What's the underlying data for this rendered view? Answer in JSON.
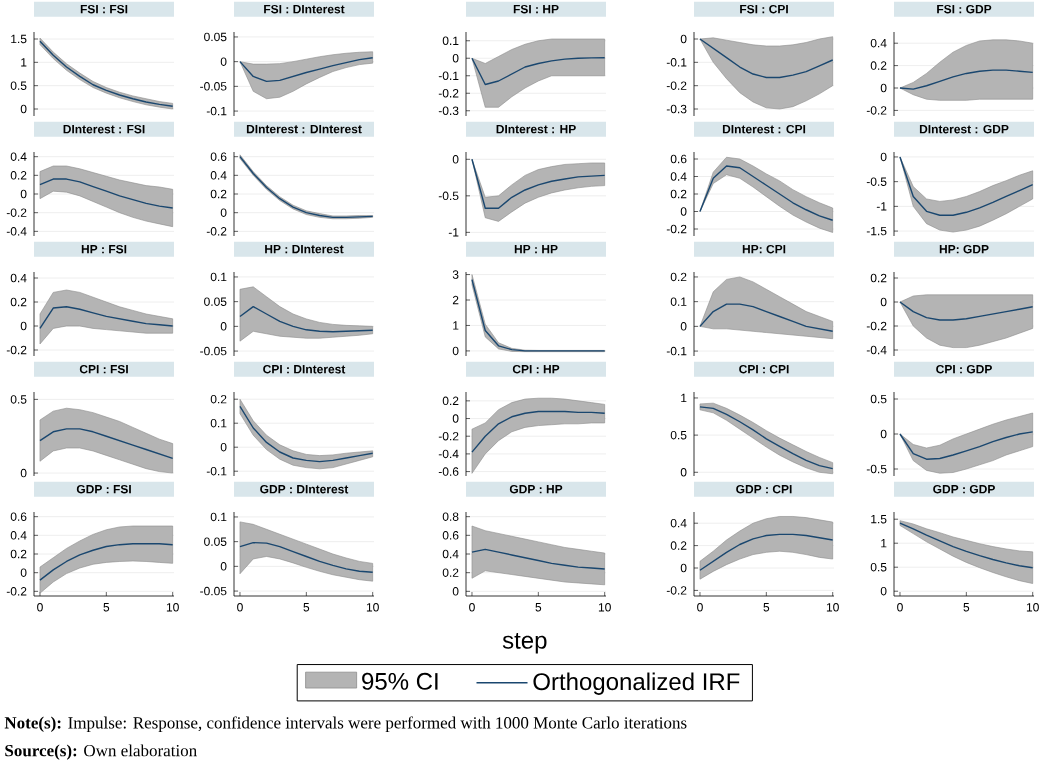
{
  "chart_data": [
    {
      "type": "line",
      "title": "FSI : FSI",
      "x": [
        0,
        1,
        2,
        3,
        4,
        5,
        6,
        7,
        8,
        9,
        10
      ],
      "xlim": [
        -0.45,
        10.1
      ],
      "xticks": [
        0,
        5,
        10
      ],
      "ylim": [
        -0.15,
        1.65
      ],
      "yticks": [
        0,
        0.5,
        1,
        1.5
      ],
      "grid": "y",
      "tick_labels": "y",
      "series": [
        {
          "color": "#1a476f",
          "values": [
            1.45,
            1.15,
            0.9,
            0.7,
            0.52,
            0.4,
            0.3,
            0.22,
            0.15,
            0.1,
            0.06
          ],
          "lower": [
            1.38,
            1.08,
            0.83,
            0.63,
            0.46,
            0.34,
            0.24,
            0.16,
            0.09,
            0.04,
            0.0
          ],
          "upper": [
            1.52,
            1.22,
            0.97,
            0.77,
            0.59,
            0.46,
            0.36,
            0.28,
            0.22,
            0.16,
            0.12
          ]
        }
      ]
    },
    {
      "type": "line",
      "title": "FSI : DInterest",
      "x": [
        0,
        1,
        2,
        3,
        4,
        5,
        6,
        7,
        8,
        9,
        10
      ],
      "xlim": [
        -0.45,
        10.1
      ],
      "xticks": [
        0,
        5,
        10
      ],
      "ylim": [
        -0.11,
        0.06
      ],
      "yticks": [
        -0.1,
        -0.05,
        0,
        0.05
      ],
      "grid": "y",
      "tick_labels": "y",
      "series": [
        {
          "color": "#1a476f",
          "values": [
            0,
            -0.03,
            -0.04,
            -0.038,
            -0.03,
            -0.022,
            -0.015,
            -0.008,
            -0.002,
            0.004,
            0.008
          ],
          "lower": [
            0,
            -0.06,
            -0.075,
            -0.072,
            -0.06,
            -0.045,
            -0.032,
            -0.02,
            -0.012,
            -0.006,
            -0.003
          ],
          "upper": [
            0,
            -0.005,
            -0.005,
            -0.004,
            0,
            0.005,
            0.01,
            0.014,
            0.017,
            0.019,
            0.02
          ]
        }
      ]
    },
    {
      "type": "line",
      "title": "FSI : HP",
      "x": [
        0,
        1,
        2,
        3,
        4,
        5,
        6,
        7,
        8,
        9,
        10
      ],
      "xlim": [
        -0.45,
        10.1
      ],
      "xticks": [
        0,
        5,
        10
      ],
      "ylim": [
        -0.33,
        0.15
      ],
      "yticks": [
        -0.3,
        -0.2,
        -0.1,
        0,
        0.1
      ],
      "grid": "y",
      "tick_labels": "y",
      "series": [
        {
          "color": "#1a476f",
          "values": [
            0,
            -0.15,
            -0.13,
            -0.09,
            -0.05,
            -0.03,
            -0.015,
            -0.005,
            0,
            0.002,
            0.003
          ],
          "lower": [
            0,
            -0.28,
            -0.28,
            -0.22,
            -0.17,
            -0.13,
            -0.1,
            -0.1,
            -0.1,
            -0.1,
            -0.1
          ],
          "upper": [
            0,
            -0.03,
            0.01,
            0.05,
            0.08,
            0.1,
            0.11,
            0.11,
            0.11,
            0.11,
            0.11
          ]
        }
      ]
    },
    {
      "type": "line",
      "title": "FSI : CPI",
      "x": [
        0,
        1,
        2,
        3,
        4,
        5,
        6,
        7,
        8,
        9,
        10
      ],
      "xlim": [
        -0.45,
        10.1
      ],
      "xticks": [
        0,
        5,
        10
      ],
      "ylim": [
        -0.33,
        0.03
      ],
      "yticks": [
        -0.3,
        -0.2,
        -0.1,
        0
      ],
      "grid": "y",
      "tick_labels": "y",
      "series": [
        {
          "color": "#1a476f",
          "values": [
            0,
            -0.04,
            -0.08,
            -0.12,
            -0.15,
            -0.165,
            -0.165,
            -0.155,
            -0.14,
            -0.115,
            -0.09
          ],
          "lower": [
            0,
            -0.1,
            -0.17,
            -0.23,
            -0.27,
            -0.295,
            -0.3,
            -0.29,
            -0.265,
            -0.235,
            -0.2
          ],
          "upper": [
            0,
            0.005,
            -0.005,
            -0.015,
            -0.025,
            -0.03,
            -0.03,
            -0.025,
            -0.015,
            0,
            0.01
          ]
        }
      ]
    },
    {
      "type": "line",
      "title": "FSI : GDP",
      "x": [
        0,
        1,
        2,
        3,
        4,
        5,
        6,
        7,
        8,
        9,
        10
      ],
      "xlim": [
        -0.45,
        10.1
      ],
      "xticks": [
        0,
        5,
        10
      ],
      "ylim": [
        -0.25,
        0.5
      ],
      "yticks": [
        -0.2,
        0,
        0.2,
        0.4
      ],
      "grid": "y",
      "tick_labels": "y",
      "series": [
        {
          "color": "#1a476f",
          "values": [
            0,
            -0.01,
            0.02,
            0.06,
            0.1,
            0.13,
            0.15,
            0.16,
            0.16,
            0.15,
            0.14
          ],
          "lower": [
            0,
            -0.06,
            -0.1,
            -0.11,
            -0.11,
            -0.11,
            -0.1,
            -0.1,
            -0.1,
            -0.1,
            -0.1
          ],
          "upper": [
            0,
            0.05,
            0.13,
            0.23,
            0.32,
            0.38,
            0.42,
            0.43,
            0.43,
            0.42,
            0.4
          ]
        }
      ]
    },
    {
      "type": "line",
      "title": "DInterest : FSI",
      "x": [
        0,
        1,
        2,
        3,
        4,
        5,
        6,
        7,
        8,
        9,
        10
      ],
      "xlim": [
        -0.45,
        10.1
      ],
      "xticks": [
        0,
        5,
        10
      ],
      "ylim": [
        -0.45,
        0.45
      ],
      "yticks": [
        -0.4,
        -0.2,
        0,
        0.2,
        0.4
      ],
      "grid": "y",
      "tick_labels": "y",
      "series": [
        {
          "color": "#1a476f",
          "values": [
            0.1,
            0.16,
            0.16,
            0.13,
            0.08,
            0.03,
            -0.02,
            -0.06,
            -0.1,
            -0.13,
            -0.15
          ],
          "lower": [
            -0.05,
            0.03,
            0.02,
            -0.02,
            -0.08,
            -0.14,
            -0.2,
            -0.25,
            -0.29,
            -0.32,
            -0.35
          ],
          "upper": [
            0.24,
            0.3,
            0.3,
            0.27,
            0.23,
            0.19,
            0.15,
            0.12,
            0.09,
            0.075,
            0.05
          ]
        }
      ]
    },
    {
      "type": "line",
      "title": "DInterest : DInterest",
      "x": [
        0,
        1,
        2,
        3,
        4,
        5,
        6,
        7,
        8,
        9,
        10
      ],
      "xlim": [
        -0.45,
        10.1
      ],
      "xticks": [
        0,
        5,
        10
      ],
      "ylim": [
        -0.25,
        0.65
      ],
      "yticks": [
        -0.2,
        0,
        0.2,
        0.4,
        0.6
      ],
      "grid": "y",
      "tick_labels": "y",
      "series": [
        {
          "color": "#1a476f",
          "values": [
            0.6,
            0.42,
            0.27,
            0.15,
            0.06,
            0,
            -0.03,
            -0.05,
            -0.05,
            -0.045,
            -0.04
          ],
          "lower": [
            0.58,
            0.4,
            0.25,
            0.13,
            0.04,
            -0.02,
            -0.05,
            -0.065,
            -0.065,
            -0.06,
            -0.05
          ],
          "upper": [
            0.62,
            0.44,
            0.29,
            0.17,
            0.08,
            0.02,
            -0.01,
            -0.035,
            -0.035,
            -0.03,
            -0.03
          ]
        }
      ]
    },
    {
      "type": "line",
      "title": "DInterest : HP",
      "x": [
        0,
        1,
        2,
        3,
        4,
        5,
        6,
        7,
        8,
        9,
        10
      ],
      "xlim": [
        -0.45,
        10.1
      ],
      "xticks": [
        0,
        5,
        10
      ],
      "ylim": [
        -1.05,
        0.1
      ],
      "yticks": [
        -1,
        -0.5,
        0
      ],
      "grid": "y",
      "tick_labels": "y",
      "series": [
        {
          "color": "#1a476f",
          "values": [
            0,
            -0.67,
            -0.67,
            -0.52,
            -0.42,
            -0.35,
            -0.3,
            -0.27,
            -0.24,
            -0.23,
            -0.22
          ],
          "lower": [
            0,
            -0.8,
            -0.85,
            -0.72,
            -0.6,
            -0.52,
            -0.46,
            -0.42,
            -0.39,
            -0.37,
            -0.36
          ],
          "upper": [
            0,
            -0.52,
            -0.5,
            -0.35,
            -0.22,
            -0.14,
            -0.1,
            -0.07,
            -0.06,
            -0.05,
            -0.05
          ]
        }
      ]
    },
    {
      "type": "line",
      "title": "DInterest : CPI",
      "x": [
        0,
        1,
        2,
        3,
        4,
        5,
        6,
        7,
        8,
        9,
        10
      ],
      "xlim": [
        -0.45,
        10.1
      ],
      "xticks": [
        0,
        5,
        10
      ],
      "ylim": [
        -0.28,
        0.68
      ],
      "yticks": [
        -0.2,
        0,
        0.2,
        0.4,
        0.6
      ],
      "grid": "y",
      "tick_labels": "y",
      "series": [
        {
          "color": "#1a476f",
          "values": [
            0,
            0.38,
            0.52,
            0.5,
            0.4,
            0.3,
            0.2,
            0.1,
            0.02,
            -0.05,
            -0.1
          ],
          "lower": [
            0,
            0.32,
            0.42,
            0.38,
            0.28,
            0.17,
            0.06,
            -0.04,
            -0.12,
            -0.19,
            -0.24
          ],
          "upper": [
            0,
            0.45,
            0.62,
            0.6,
            0.52,
            0.43,
            0.35,
            0.25,
            0.17,
            0.1,
            0.04
          ]
        }
      ]
    },
    {
      "type": "line",
      "title": "DInterest : GDP",
      "x": [
        0,
        1,
        2,
        3,
        4,
        5,
        6,
        7,
        8,
        9,
        10
      ],
      "xlim": [
        -0.45,
        10.1
      ],
      "xticks": [
        0,
        5,
        10
      ],
      "ylim": [
        -1.6,
        0.1
      ],
      "yticks": [
        -1.5,
        -1,
        -0.5,
        0
      ],
      "grid": "y",
      "tick_labels": "y",
      "series": [
        {
          "color": "#1a476f",
          "values": [
            0,
            -0.8,
            -1.1,
            -1.18,
            -1.18,
            -1.12,
            -1.03,
            -0.92,
            -0.8,
            -0.68,
            -0.56
          ],
          "lower": [
            0,
            -1.0,
            -1.35,
            -1.48,
            -1.52,
            -1.48,
            -1.4,
            -1.28,
            -1.15,
            -1.0,
            -0.85
          ],
          "upper": [
            0,
            -0.6,
            -0.85,
            -0.9,
            -0.87,
            -0.8,
            -0.7,
            -0.58,
            -0.48,
            -0.37,
            -0.28
          ]
        }
      ]
    },
    {
      "type": "line",
      "title": "HP : FSI",
      "x": [
        0,
        1,
        2,
        3,
        4,
        5,
        6,
        7,
        8,
        9,
        10
      ],
      "xlim": [
        -0.45,
        10.1
      ],
      "xticks": [
        0,
        5,
        10
      ],
      "ylim": [
        -0.25,
        0.45
      ],
      "yticks": [
        -0.2,
        0,
        0.2,
        0.4
      ],
      "grid": "y",
      "tick_labels": "y",
      "series": [
        {
          "color": "#1a476f",
          "values": [
            -0.02,
            0.15,
            0.16,
            0.14,
            0.11,
            0.08,
            0.06,
            0.04,
            0.02,
            0.01,
            0
          ],
          "lower": [
            -0.15,
            -0.02,
            0,
            0,
            -0.02,
            -0.03,
            -0.04,
            -0.05,
            -0.06,
            -0.06,
            -0.06
          ],
          "upper": [
            0.1,
            0.28,
            0.3,
            0.28,
            0.24,
            0.2,
            0.16,
            0.13,
            0.1,
            0.08,
            0.06
          ]
        }
      ]
    },
    {
      "type": "line",
      "title": "HP : DInterest",
      "x": [
        0,
        1,
        2,
        3,
        4,
        5,
        6,
        7,
        8,
        9,
        10
      ],
      "xlim": [
        -0.45,
        10.1
      ],
      "xticks": [
        0,
        5,
        10
      ],
      "ylim": [
        -0.06,
        0.11
      ],
      "yticks": [
        -0.05,
        0,
        0.05,
        0.1
      ],
      "grid": "y",
      "tick_labels": "y",
      "series": [
        {
          "color": "#1a476f",
          "values": [
            0.02,
            0.04,
            0.025,
            0.01,
            0,
            -0.007,
            -0.01,
            -0.011,
            -0.01,
            -0.009,
            -0.008
          ],
          "lower": [
            -0.03,
            -0.01,
            -0.015,
            -0.02,
            -0.022,
            -0.024,
            -0.024,
            -0.022,
            -0.02,
            -0.018,
            -0.015
          ],
          "upper": [
            0.075,
            0.08,
            0.06,
            0.04,
            0.025,
            0.015,
            0.008,
            0.004,
            0.002,
            0.001,
            0
          ]
        }
      ]
    },
    {
      "type": "line",
      "title": "HP : HP",
      "x": [
        0,
        1,
        2,
        3,
        4,
        5,
        6,
        7,
        8,
        9,
        10
      ],
      "xlim": [
        -0.45,
        10.1
      ],
      "xticks": [
        0,
        5,
        10
      ],
      "ylim": [
        -0.2,
        3.1
      ],
      "yticks": [
        0,
        1,
        2,
        3
      ],
      "grid": "y",
      "tick_labels": "y",
      "series": [
        {
          "color": "#1a476f",
          "values": [
            2.8,
            0.8,
            0.2,
            0.05,
            0,
            0,
            0,
            0,
            0,
            0,
            0
          ],
          "lower": [
            2.6,
            0.55,
            0.08,
            -0.02,
            -0.03,
            -0.03,
            -0.03,
            -0.03,
            -0.03,
            -0.03,
            -0.03
          ],
          "upper": [
            3.0,
            1.05,
            0.32,
            0.1,
            0.03,
            0.02,
            0.02,
            0.02,
            0.02,
            0.02,
            0.02
          ]
        }
      ]
    },
    {
      "type": "line",
      "title": "HP: CPI",
      "x": [
        0,
        1,
        2,
        3,
        4,
        5,
        6,
        7,
        8,
        9,
        10
      ],
      "xlim": [
        -0.45,
        10.1
      ],
      "xticks": [
        0,
        5,
        10
      ],
      "ylim": [
        -0.12,
        0.22
      ],
      "yticks": [
        -0.1,
        0,
        0.1,
        0.2
      ],
      "grid": "y",
      "tick_labels": "y",
      "series": [
        {
          "color": "#1a476f",
          "values": [
            0,
            0.06,
            0.09,
            0.09,
            0.08,
            0.06,
            0.04,
            0.02,
            0,
            -0.01,
            -0.02
          ],
          "lower": [
            0,
            -0.01,
            -0.01,
            -0.015,
            -0.02,
            -0.025,
            -0.03,
            -0.035,
            -0.04,
            -0.045,
            -0.05
          ],
          "upper": [
            0,
            0.14,
            0.19,
            0.2,
            0.18,
            0.15,
            0.12,
            0.09,
            0.06,
            0.04,
            0.02
          ]
        }
      ]
    },
    {
      "type": "line",
      "title": "HP: GDP",
      "x": [
        0,
        1,
        2,
        3,
        4,
        5,
        6,
        7,
        8,
        9,
        10
      ],
      "xlim": [
        -0.45,
        10.1
      ],
      "xticks": [
        0,
        5,
        10
      ],
      "ylim": [
        -0.45,
        0.25
      ],
      "yticks": [
        -0.4,
        -0.2,
        0,
        0.2
      ],
      "grid": "y",
      "tick_labels": "y",
      "series": [
        {
          "color": "#1a476f",
          "values": [
            0,
            -0.08,
            -0.13,
            -0.15,
            -0.15,
            -0.14,
            -0.12,
            -0.1,
            -0.08,
            -0.06,
            -0.04
          ],
          "lower": [
            0,
            -0.2,
            -0.3,
            -0.36,
            -0.38,
            -0.38,
            -0.36,
            -0.33,
            -0.3,
            -0.26,
            -0.22
          ],
          "upper": [
            0,
            0.05,
            0.06,
            0.06,
            0.06,
            0.06,
            0.06,
            0.06,
            0.06,
            0.06,
            0.06
          ]
        }
      ]
    },
    {
      "type": "line",
      "title": "CPI : FSI",
      "x": [
        0,
        1,
        2,
        3,
        4,
        5,
        6,
        7,
        8,
        9,
        10
      ],
      "xlim": [
        -0.45,
        10.1
      ],
      "xticks": [
        0,
        5,
        10
      ],
      "ylim": [
        -0.02,
        0.55
      ],
      "yticks": [
        0,
        0.5
      ],
      "grid": "y",
      "tick_labels": "y",
      "series": [
        {
          "color": "#1a476f",
          "values": [
            0.22,
            0.28,
            0.3,
            0.3,
            0.28,
            0.25,
            0.22,
            0.19,
            0.16,
            0.13,
            0.1
          ],
          "lower": [
            0.08,
            0.15,
            0.17,
            0.17,
            0.15,
            0.12,
            0.09,
            0.06,
            0.03,
            0.01,
            0
          ],
          "upper": [
            0.36,
            0.42,
            0.44,
            0.43,
            0.41,
            0.38,
            0.35,
            0.31,
            0.27,
            0.23,
            0.2
          ]
        }
      ]
    },
    {
      "type": "line",
      "title": "CPI : DInterest",
      "x": [
        0,
        1,
        2,
        3,
        4,
        5,
        6,
        7,
        8,
        9,
        10
      ],
      "xlim": [
        -0.45,
        10.1
      ],
      "xticks": [
        0,
        5,
        10
      ],
      "ylim": [
        -0.12,
        0.23
      ],
      "yticks": [
        -0.1,
        0,
        0.1,
        0.2
      ],
      "grid": "y",
      "tick_labels": "y",
      "series": [
        {
          "color": "#1a476f",
          "values": [
            0.17,
            0.08,
            0.02,
            -0.02,
            -0.045,
            -0.055,
            -0.06,
            -0.055,
            -0.045,
            -0.035,
            -0.025
          ],
          "lower": [
            0.14,
            0.05,
            -0.01,
            -0.05,
            -0.075,
            -0.085,
            -0.09,
            -0.085,
            -0.07,
            -0.055,
            -0.04
          ],
          "upper": [
            0.2,
            0.11,
            0.05,
            0.01,
            -0.015,
            -0.03,
            -0.035,
            -0.032,
            -0.025,
            -0.02,
            -0.015
          ]
        }
      ]
    },
    {
      "type": "line",
      "title": "CPI : HP",
      "x": [
        0,
        1,
        2,
        3,
        4,
        5,
        6,
        7,
        8,
        9,
        10
      ],
      "xlim": [
        -0.45,
        10.1
      ],
      "xticks": [
        0,
        5,
        10
      ],
      "ylim": [
        -0.65,
        0.3
      ],
      "yticks": [
        -0.6,
        -0.4,
        -0.2,
        0,
        0.2
      ],
      "grid": "y",
      "tick_labels": "y",
      "series": [
        {
          "color": "#1a476f",
          "values": [
            -0.38,
            -0.2,
            -0.06,
            0.02,
            0.06,
            0.08,
            0.08,
            0.08,
            0.07,
            0.07,
            0.06
          ],
          "lower": [
            -0.62,
            -0.4,
            -0.25,
            -0.15,
            -0.1,
            -0.08,
            -0.07,
            -0.06,
            -0.06,
            -0.05,
            -0.05
          ],
          "upper": [
            -0.12,
            -0.05,
            0.1,
            0.18,
            0.22,
            0.23,
            0.23,
            0.22,
            0.2,
            0.18,
            0.16
          ]
        }
      ]
    },
    {
      "type": "line",
      "title": "CPI : CPI",
      "x": [
        0,
        1,
        2,
        3,
        4,
        5,
        6,
        7,
        8,
        9,
        10
      ],
      "xlim": [
        -0.45,
        10.1
      ],
      "xticks": [
        0,
        5,
        10
      ],
      "ylim": [
        -0.05,
        1.08
      ],
      "yticks": [
        0,
        0.5,
        1
      ],
      "grid": "y",
      "tick_labels": "y",
      "series": [
        {
          "color": "#1a476f",
          "values": [
            0.88,
            0.86,
            0.78,
            0.68,
            0.57,
            0.45,
            0.35,
            0.25,
            0.16,
            0.09,
            0.05
          ],
          "lower": [
            0.84,
            0.8,
            0.7,
            0.58,
            0.46,
            0.34,
            0.23,
            0.14,
            0.06,
            0,
            -0.02
          ],
          "upper": [
            0.92,
            0.93,
            0.86,
            0.77,
            0.67,
            0.56,
            0.46,
            0.37,
            0.28,
            0.2,
            0.13
          ]
        }
      ]
    },
    {
      "type": "line",
      "title": "CPI : GDP",
      "x": [
        0,
        1,
        2,
        3,
        4,
        5,
        6,
        7,
        8,
        9,
        10
      ],
      "xlim": [
        -0.45,
        10.1
      ],
      "xticks": [
        0,
        5,
        10
      ],
      "ylim": [
        -0.6,
        0.6
      ],
      "yticks": [
        -0.5,
        0,
        0.5
      ],
      "grid": "y",
      "tick_labels": "y",
      "series": [
        {
          "color": "#1a476f",
          "values": [
            0,
            -0.28,
            -0.36,
            -0.35,
            -0.3,
            -0.24,
            -0.18,
            -0.11,
            -0.05,
            0,
            0.03
          ],
          "lower": [
            0,
            -0.38,
            -0.52,
            -0.56,
            -0.55,
            -0.5,
            -0.44,
            -0.38,
            -0.3,
            -0.24,
            -0.18
          ],
          "upper": [
            0,
            -0.15,
            -0.2,
            -0.16,
            -0.07,
            0,
            0.07,
            0.14,
            0.2,
            0.25,
            0.3
          ]
        }
      ]
    },
    {
      "type": "line",
      "title": "GDP : FSI",
      "x": [
        0,
        1,
        2,
        3,
        4,
        5,
        6,
        7,
        8,
        9,
        10
      ],
      "xlim": [
        -0.45,
        10.1
      ],
      "xticks": [
        0,
        5,
        10
      ],
      "ylim": [
        -0.25,
        0.65
      ],
      "yticks": [
        -0.2,
        0,
        0.2,
        0.4,
        0.6
      ],
      "grid": "y",
      "series": [
        {
          "color": "#1a476f",
          "values": [
            -0.08,
            0.03,
            0.12,
            0.19,
            0.24,
            0.28,
            0.3,
            0.31,
            0.31,
            0.31,
            0.3
          ],
          "lower": [
            -0.22,
            -0.1,
            -0.01,
            0.05,
            0.09,
            0.11,
            0.12,
            0.125,
            0.12,
            0.11,
            0.1
          ],
          "upper": [
            0.06,
            0.16,
            0.26,
            0.34,
            0.41,
            0.46,
            0.49,
            0.5,
            0.5,
            0.5,
            0.5
          ]
        }
      ]
    },
    {
      "type": "line",
      "title": "GDP : DInterest",
      "x": [
        0,
        1,
        2,
        3,
        4,
        5,
        6,
        7,
        8,
        9,
        10
      ],
      "xlim": [
        -0.45,
        10.1
      ],
      "xticks": [
        0,
        5,
        10
      ],
      "ylim": [
        -0.06,
        0.11
      ],
      "yticks": [
        -0.05,
        0,
        0.05,
        0.1
      ],
      "grid": "y",
      "series": [
        {
          "color": "#1a476f",
          "values": [
            0.04,
            0.048,
            0.047,
            0.04,
            0.03,
            0.02,
            0.01,
            0.002,
            -0.005,
            -0.01,
            -0.012
          ],
          "lower": [
            -0.015,
            0.015,
            0.02,
            0.015,
            0.007,
            -0.002,
            -0.01,
            -0.017,
            -0.022,
            -0.027,
            -0.03
          ],
          "upper": [
            0.09,
            0.085,
            0.075,
            0.065,
            0.055,
            0.045,
            0.035,
            0.025,
            0.017,
            0.01,
            0.006
          ]
        }
      ]
    },
    {
      "type": "line",
      "title": "GDP : HP",
      "x": [
        0,
        1,
        2,
        3,
        4,
        5,
        6,
        7,
        8,
        9,
        10
      ],
      "xlim": [
        -0.45,
        10.1
      ],
      "xticks": [
        0,
        5,
        10
      ],
      "ylim": [
        -0.05,
        0.85
      ],
      "yticks": [
        0,
        0.2,
        0.4,
        0.6,
        0.8
      ],
      "grid": "y",
      "xlabel": "step",
      "legend": "bottom",
      "annotations": [
        "95% CI",
        "**Note(s):** Impulse: Response, confidence intervals were performed with 1000 Monte Carlo iterations",
        "**Source(s):** Own elaboration"
      ],
      "series": [
        {
          "name": "Orthogonalized IRF",
          "color": "#1a476f",
          "values": [
            0.42,
            0.45,
            0.42,
            0.39,
            0.36,
            0.33,
            0.3,
            0.28,
            0.26,
            0.25,
            0.24
          ],
          "lower": [
            0.14,
            0.22,
            0.2,
            0.18,
            0.16,
            0.14,
            0.12,
            0.1,
            0.09,
            0.08,
            0.07
          ],
          "upper": [
            0.7,
            0.65,
            0.62,
            0.59,
            0.56,
            0.53,
            0.5,
            0.47,
            0.45,
            0.43,
            0.41
          ]
        }
      ]
    },
    {
      "type": "line",
      "title": "GDP : CPI",
      "x": [
        0,
        1,
        2,
        3,
        4,
        5,
        6,
        7,
        8,
        9,
        10
      ],
      "xlim": [
        -0.45,
        10.1
      ],
      "xticks": [
        0,
        5,
        10
      ],
      "ylim": [
        -0.25,
        0.5
      ],
      "yticks": [
        -0.2,
        0,
        0.2,
        0.4
      ],
      "grid": "y",
      "series": [
        {
          "color": "#1a476f",
          "values": [
            -0.02,
            0.06,
            0.14,
            0.21,
            0.26,
            0.29,
            0.3,
            0.3,
            0.29,
            0.27,
            0.25
          ],
          "lower": [
            -0.1,
            -0.03,
            0.03,
            0.08,
            0.12,
            0.14,
            0.15,
            0.14,
            0.12,
            0.095,
            0.08
          ],
          "upper": [
            0.06,
            0.15,
            0.25,
            0.33,
            0.4,
            0.44,
            0.46,
            0.46,
            0.45,
            0.43,
            0.41
          ]
        }
      ]
    },
    {
      "type": "line",
      "title": "GDP : GDP",
      "x": [
        0,
        1,
        2,
        3,
        4,
        5,
        6,
        7,
        8,
        9,
        10
      ],
      "xlim": [
        -0.45,
        10.1
      ],
      "xticks": [
        0,
        5,
        10
      ],
      "ylim": [
        -0.1,
        1.65
      ],
      "yticks": [
        0,
        0.5,
        1,
        1.5
      ],
      "grid": "y",
      "series": [
        {
          "color": "#1a476f",
          "values": [
            1.42,
            1.3,
            1.17,
            1.05,
            0.93,
            0.83,
            0.74,
            0.66,
            0.59,
            0.53,
            0.49
          ],
          "lower": [
            1.37,
            1.2,
            1.03,
            0.88,
            0.73,
            0.6,
            0.49,
            0.39,
            0.3,
            0.22,
            0.16
          ],
          "upper": [
            1.47,
            1.4,
            1.3,
            1.22,
            1.13,
            1.06,
            0.99,
            0.93,
            0.88,
            0.84,
            0.82
          ]
        }
      ]
    }
  ]
}
